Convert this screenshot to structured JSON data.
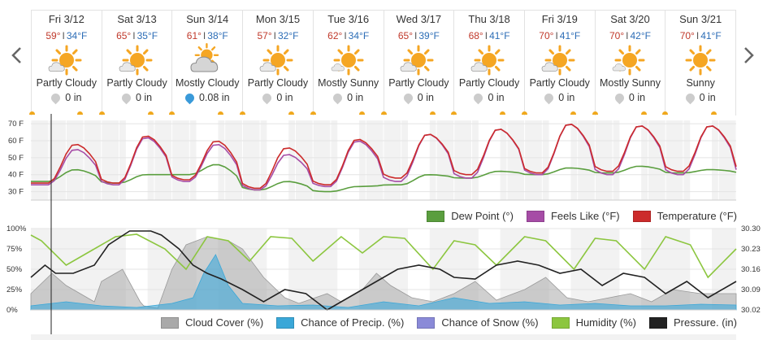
{
  "nav": {
    "prev_icon": "chevron-left-icon",
    "next_icon": "chevron-right-icon"
  },
  "days": [
    {
      "date": "Fri 3/12",
      "hi": "59°",
      "lo": "34°F",
      "icon": "partly-cloudy-icon",
      "cond": "Partly Cloudy",
      "precip": "0 in",
      "precip_type": "none"
    },
    {
      "date": "Sat 3/13",
      "hi": "65°",
      "lo": "35°F",
      "icon": "partly-cloudy-icon",
      "cond": "Partly Cloudy",
      "precip": "0 in",
      "precip_type": "none"
    },
    {
      "date": "Sun 3/14",
      "hi": "61°",
      "lo": "38°F",
      "icon": "mostly-cloudy-icon",
      "cond": "Mostly Cloudy",
      "precip": "0.08 in",
      "precip_type": "rain"
    },
    {
      "date": "Mon 3/15",
      "hi": "57°",
      "lo": "32°F",
      "icon": "partly-cloudy-icon",
      "cond": "Partly Cloudy",
      "precip": "0 in",
      "precip_type": "none"
    },
    {
      "date": "Tue 3/16",
      "hi": "62°",
      "lo": "34°F",
      "icon": "mostly-sunny-icon",
      "cond": "Mostly Sunny",
      "precip": "0 in",
      "precip_type": "none"
    },
    {
      "date": "Wed 3/17",
      "hi": "65°",
      "lo": "39°F",
      "icon": "partly-cloudy-icon",
      "cond": "Partly Cloudy",
      "precip": "0 in",
      "precip_type": "none"
    },
    {
      "date": "Thu 3/18",
      "hi": "68°",
      "lo": "41°F",
      "icon": "partly-cloudy-icon",
      "cond": "Partly Cloudy",
      "precip": "0 in",
      "precip_type": "none"
    },
    {
      "date": "Fri 3/19",
      "hi": "70°",
      "lo": "41°F",
      "icon": "partly-cloudy-icon",
      "cond": "Partly Cloudy",
      "precip": "0 in",
      "precip_type": "none"
    },
    {
      "date": "Sat 3/20",
      "hi": "70°",
      "lo": "42°F",
      "icon": "mostly-sunny-icon",
      "cond": "Mostly Sunny",
      "precip": "0 in",
      "precip_type": "none"
    },
    {
      "date": "Sun 3/21",
      "hi": "70°",
      "lo": "41°F",
      "icon": "sunny-icon",
      "cond": "Sunny",
      "precip": "0 in",
      "precip_type": "none"
    }
  ],
  "temp_sep": "I",
  "chart_data": [
    {
      "type": "line",
      "y_ticks": [
        "70 F",
        "60 F",
        "50 F",
        "40 F",
        "30 F"
      ],
      "ylim": [
        25,
        72
      ],
      "series": [
        {
          "name": "Dew Point (°)",
          "color": "#5a9e3e",
          "daily_hi": [
            43,
            40,
            46,
            36,
            33,
            40,
            42,
            44,
            45,
            43
          ],
          "daily_lo": [
            36,
            35,
            40,
            31,
            30,
            34,
            38,
            40,
            41,
            41
          ]
        },
        {
          "name": "Feels Like (°F)",
          "color": "#a64ca6",
          "daily_hi": [
            55,
            62,
            58,
            52,
            60,
            64,
            67,
            70,
            69,
            69
          ],
          "daily_lo": [
            34,
            34,
            36,
            31,
            33,
            36,
            38,
            40,
            40,
            40
          ]
        },
        {
          "name": "Temperature (°F)",
          "color": "#cc2b2b",
          "daily_hi": [
            58,
            63,
            60,
            56,
            61,
            64,
            67,
            70,
            69,
            69
          ],
          "daily_lo": [
            35,
            35,
            37,
            32,
            34,
            38,
            40,
            41,
            42,
            42
          ]
        }
      ]
    },
    {
      "type": "area",
      "y_ticks_left": [
        "100%",
        "75%",
        "50%",
        "25%",
        "0%"
      ],
      "y_ticks_right": [
        "30.30",
        "30.23",
        "30.16",
        "30.09",
        "30.02"
      ],
      "ylim": [
        0,
        100
      ],
      "series": [
        {
          "name": "Cloud Cover (%)",
          "color": "#a9a9a9"
        },
        {
          "name": "Chance of Precip. (%)",
          "color": "#3aa7d8"
        },
        {
          "name": "Chance of Snow (%)",
          "color": "#8a8ad8"
        },
        {
          "name": "Humidity (%)",
          "color": "#8cc63f"
        },
        {
          "name": "Pressure. (in)",
          "color": "#222222"
        }
      ]
    }
  ]
}
